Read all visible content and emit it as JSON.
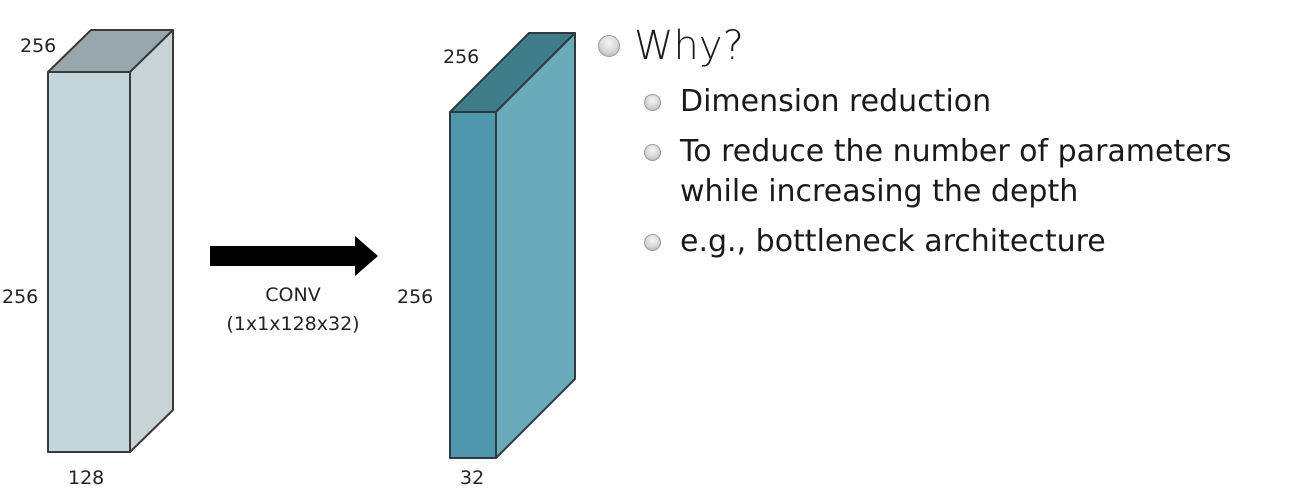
{
  "left_block": {
    "top_label": "256",
    "side_label": "256",
    "bottom_label": "128",
    "colors": {
      "front": "#c5d5dc",
      "side": "#c8d3d6",
      "top": "#98a7ab"
    }
  },
  "right_block": {
    "top_label": "256",
    "side_label": "256",
    "bottom_label": "32",
    "colors": {
      "front": "#4f97ad",
      "side": "#6aaabb",
      "top": "#3f7d89"
    }
  },
  "operation": {
    "name": "CONV",
    "params": "(1x1x128x32)"
  },
  "bullets": {
    "heading": "Why?",
    "items": [
      {
        "text": "Dimension reduction"
      },
      {
        "text": "To reduce the number of parameters while increasing the depth"
      },
      {
        "text": "e.g., bottleneck architecture"
      }
    ]
  }
}
